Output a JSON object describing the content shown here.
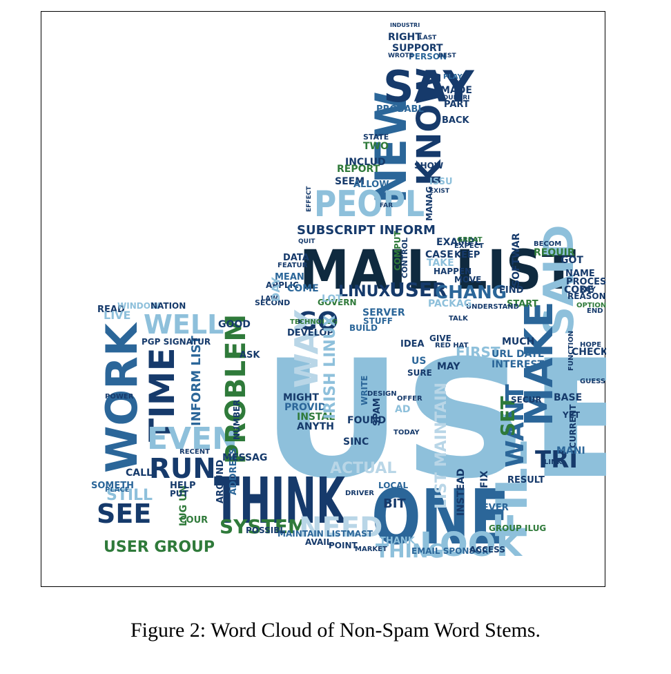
{
  "caption": "Figure 2: Word Cloud of Non-Spam Word Stems.",
  "palette": {
    "dark": "#0f2a3f",
    "navy": "#163a6b",
    "blue": "#2b6699",
    "light": "#8ec0db",
    "pale": "#b9d6e7",
    "green": "#2f7a3a"
  },
  "words": [
    {
      "text": "USE",
      "color": "light"
    },
    {
      "text": "MAIL LIST",
      "color": "dark"
    },
    {
      "text": "ONE",
      "color": "blue"
    },
    {
      "text": "THINK",
      "color": "navy"
    },
    {
      "text": "NEW",
      "color": "blue"
    },
    {
      "text": "KNOW",
      "color": "navy"
    },
    {
      "text": "SAY",
      "color": "navy"
    },
    {
      "text": "PEOPL",
      "color": "light"
    },
    {
      "text": "SAID",
      "color": "light"
    },
    {
      "text": "MAKE",
      "color": "blue"
    },
    {
      "text": "WORK",
      "color": "blue"
    },
    {
      "text": "TIME",
      "color": "navy"
    },
    {
      "text": "WELL",
      "color": "light"
    },
    {
      "text": "EVEN",
      "color": "light"
    },
    {
      "text": "RUN",
      "color": "navy"
    },
    {
      "text": "SEE",
      "color": "navy"
    },
    {
      "text": "STILL",
      "color": "light"
    },
    {
      "text": "USER GROUP",
      "color": "green"
    },
    {
      "text": "PROBLEM",
      "color": "green"
    },
    {
      "text": "SYSTEM",
      "color": "green"
    },
    {
      "text": "NEED",
      "color": "pale"
    },
    {
      "text": "LOOK",
      "color": "light"
    },
    {
      "text": "THING",
      "color": "light"
    },
    {
      "text": "FILE",
      "color": "light"
    },
    {
      "text": "WANT",
      "color": "blue"
    },
    {
      "text": "TRI",
      "color": "navy"
    },
    {
      "text": "SET",
      "color": "green"
    },
    {
      "text": "GO",
      "color": "navy"
    },
    {
      "text": "LINUX",
      "color": "navy"
    },
    {
      "text": "USER",
      "color": "navy"
    },
    {
      "text": "CHANG",
      "color": "blue"
    },
    {
      "text": "SUBSCRIPT INFORM",
      "color": "navy"
    },
    {
      "text": "WAY",
      "color": "pale"
    },
    {
      "text": "FIRST",
      "color": "light"
    },
    {
      "text": "CALL",
      "color": "navy"
    },
    {
      "text": "SOMETH",
      "color": "blue"
    },
    {
      "text": "INFORM LIST",
      "color": "blue"
    },
    {
      "text": "EMAIL SPONSOR",
      "color": "blue"
    },
    {
      "text": "MAINTAIN LISTMAST",
      "color": "blue"
    },
    {
      "text": "GROUP ILUG",
      "color": "green"
    },
    {
      "text": "URL DATE",
      "color": "blue"
    },
    {
      "text": "INTEREST",
      "color": "blue"
    },
    {
      "text": "SOFTWAR",
      "color": "navy"
    },
    {
      "text": "REQUIR",
      "color": "green"
    },
    {
      "text": "INCLUD",
      "color": "navy"
    },
    {
      "text": "REPORT",
      "color": "green"
    },
    {
      "text": "SEEM",
      "color": "navy"
    },
    {
      "text": "ALLOW",
      "color": "blue"
    },
    {
      "text": "SUPPORT",
      "color": "navy"
    },
    {
      "text": "PERSON",
      "color": "blue"
    },
    {
      "text": "RIGHT",
      "color": "navy"
    },
    {
      "text": "PROBABL",
      "color": "blue"
    },
    {
      "text": "MADE",
      "color": "navy"
    },
    {
      "text": "PART",
      "color": "navy"
    },
    {
      "text": "BACK",
      "color": "navy"
    },
    {
      "text": "SHOW",
      "color": "navy"
    },
    {
      "text": "EXAMPL",
      "color": "navy"
    },
    {
      "text": "CASE",
      "color": "navy"
    },
    {
      "text": "KEEP",
      "color": "navy"
    },
    {
      "text": "HAPPEN",
      "color": "navy"
    },
    {
      "text": "MOVE",
      "color": "navy"
    },
    {
      "text": "FIND",
      "color": "navy"
    },
    {
      "text": "START",
      "color": "green"
    },
    {
      "text": "CODE",
      "color": "navy"
    },
    {
      "text": "NAME",
      "color": "navy"
    },
    {
      "text": "PROCESS",
      "color": "navy"
    },
    {
      "text": "REASON",
      "color": "navy"
    },
    {
      "text": "GOT",
      "color": "navy"
    },
    {
      "text": "CHECK",
      "color": "navy"
    },
    {
      "text": "BASE",
      "color": "navy"
    },
    {
      "text": "CURRENT",
      "color": "navy"
    },
    {
      "text": "RESULT",
      "color": "navy"
    },
    {
      "text": "NEVER",
      "color": "blue"
    },
    {
      "text": "INSTEAD",
      "color": "navy"
    },
    {
      "text": "ACCESS",
      "color": "navy"
    },
    {
      "text": "POINT",
      "color": "navy"
    },
    {
      "text": "AVAIL",
      "color": "navy"
    },
    {
      "text": "POSSIBL",
      "color": "navy"
    },
    {
      "text": "ADDRESS",
      "color": "blue"
    },
    {
      "text": "AROUND",
      "color": "navy"
    },
    {
      "text": "MESSAG",
      "color": "navy"
    },
    {
      "text": "SINC",
      "color": "navy"
    },
    {
      "text": "FOUND",
      "color": "navy"
    },
    {
      "text": "ANYTH",
      "color": "navy"
    },
    {
      "text": "INSTAL",
      "color": "green"
    },
    {
      "text": "PROVID",
      "color": "blue"
    },
    {
      "text": "MIGHT",
      "color": "navy"
    },
    {
      "text": "DEVELOP",
      "color": "navy"
    },
    {
      "text": "ASK",
      "color": "navy"
    },
    {
      "text": "GOOD",
      "color": "navy"
    },
    {
      "text": "SERVER",
      "color": "blue"
    },
    {
      "text": "STUFF",
      "color": "blue"
    },
    {
      "text": "BUILD",
      "color": "blue"
    },
    {
      "text": "IDEA",
      "color": "navy"
    },
    {
      "text": "SURE",
      "color": "navy"
    },
    {
      "text": "MAY",
      "color": "navy"
    },
    {
      "text": "GIVE",
      "color": "navy"
    },
    {
      "text": "MUCH",
      "color": "navy"
    },
    {
      "text": "LIST MAINTAIN",
      "color": "pale"
    },
    {
      "text": "READ",
      "color": "navy"
    },
    {
      "text": "WINDOW",
      "color": "light"
    },
    {
      "text": "NATION",
      "color": "navy"
    },
    {
      "text": "PGP SIGNATUR",
      "color": "navy"
    },
    {
      "text": "MEAN",
      "color": "blue"
    },
    {
      "text": "DATA",
      "color": "navy"
    },
    {
      "text": "APPLIC",
      "color": "navy"
    },
    {
      "text": "COME",
      "color": "blue"
    },
    {
      "text": "GOVERN",
      "color": "green"
    },
    {
      "text": "SECOND",
      "color": "navy"
    },
    {
      "text": "TWO",
      "color": "green"
    },
    {
      "text": "ISSU",
      "color": "light"
    },
    {
      "text": "STATE",
      "color": "navy"
    },
    {
      "text": "MANAG",
      "color": "navy"
    },
    {
      "text": "LUG UN",
      "color": "green"
    },
    {
      "text": "HELP",
      "color": "navy"
    },
    {
      "text": "PUT",
      "color": "navy"
    },
    {
      "text": "COUR",
      "color": "green"
    },
    {
      "text": "YET",
      "color": "navy"
    },
    {
      "text": "SECUR",
      "color": "navy"
    },
    {
      "text": "TODAY",
      "color": "navy"
    },
    {
      "text": "OFFER",
      "color": "navy"
    },
    {
      "text": "SPAM",
      "color": "navy"
    },
    {
      "text": "WRITE",
      "color": "blue"
    },
    {
      "text": "BIT",
      "color": "navy"
    },
    {
      "text": "LOCAL",
      "color": "blue"
    },
    {
      "text": "ACTUAL",
      "color": "pale"
    },
    {
      "text": "THANK",
      "color": "light"
    },
    {
      "text": "MARKET",
      "color": "navy"
    },
    {
      "text": "EXPECT",
      "color": "navy"
    },
    {
      "text": "FIX",
      "color": "navy"
    },
    {
      "text": "TALK",
      "color": "navy"
    },
    {
      "text": "END",
      "color": "navy"
    },
    {
      "text": "KEY",
      "color": "navy"
    },
    {
      "text": "OPTION",
      "color": "green"
    },
    {
      "text": "GREAT",
      "color": "green"
    },
    {
      "text": "BECOM",
      "color": "navy"
    },
    {
      "text": "POWER",
      "color": "navy"
    },
    {
      "text": "LIVE",
      "color": "light"
    },
    {
      "text": "PLACE",
      "color": "blue"
    },
    {
      "text": "INDUSTRI",
      "color": "navy"
    },
    {
      "text": "LAST",
      "color": "navy"
    },
    {
      "text": "WROTE",
      "color": "navy"
    },
    {
      "text": "BEST",
      "color": "navy"
    },
    {
      "text": "COUNTRI",
      "color": "navy"
    },
    {
      "text": "PLAY",
      "color": "blue"
    },
    {
      "text": "EXIST",
      "color": "navy"
    },
    {
      "text": "FEATUR",
      "color": "navy"
    },
    {
      "text": "COMPUT",
      "color": "green"
    },
    {
      "text": "CONTROL",
      "color": "navy"
    },
    {
      "text": "LAW",
      "color": "navy"
    },
    {
      "text": "DAY",
      "color": "light"
    },
    {
      "text": "MANI",
      "color": "blue"
    },
    {
      "text": "TAKE",
      "color": "light"
    },
    {
      "text": "UNDERSTAND",
      "color": "navy"
    },
    {
      "text": "PACKAG",
      "color": "light"
    },
    {
      "text": "TECHNOLOG",
      "color": "green"
    },
    {
      "text": "RED HAT",
      "color": "navy"
    },
    {
      "text": "IRISH LINUX",
      "color": "light"
    },
    {
      "text": "LINK",
      "color": "navy"
    },
    {
      "text": "HOPE",
      "color": "navy"
    },
    {
      "text": "FUNCTION",
      "color": "navy"
    },
    {
      "text": "GUESS",
      "color": "navy"
    },
    {
      "text": "DESIGN",
      "color": "navy"
    },
    {
      "text": "DRIVER",
      "color": "navy"
    },
    {
      "text": "US",
      "color": "blue"
    },
    {
      "text": "AD",
      "color": "light"
    },
    {
      "text": "NUMBER",
      "color": "navy"
    },
    {
      "text": "RECENT",
      "color": "navy"
    },
    {
      "text": "EFFECT",
      "color": "navy"
    },
    {
      "text": "QUIT",
      "color": "navy"
    },
    {
      "text": "LOT",
      "color": "light"
    },
    {
      "text": "FAR",
      "color": "navy"
    },
    {
      "text": "INSTEAD",
      "color": "navy"
    }
  ]
}
